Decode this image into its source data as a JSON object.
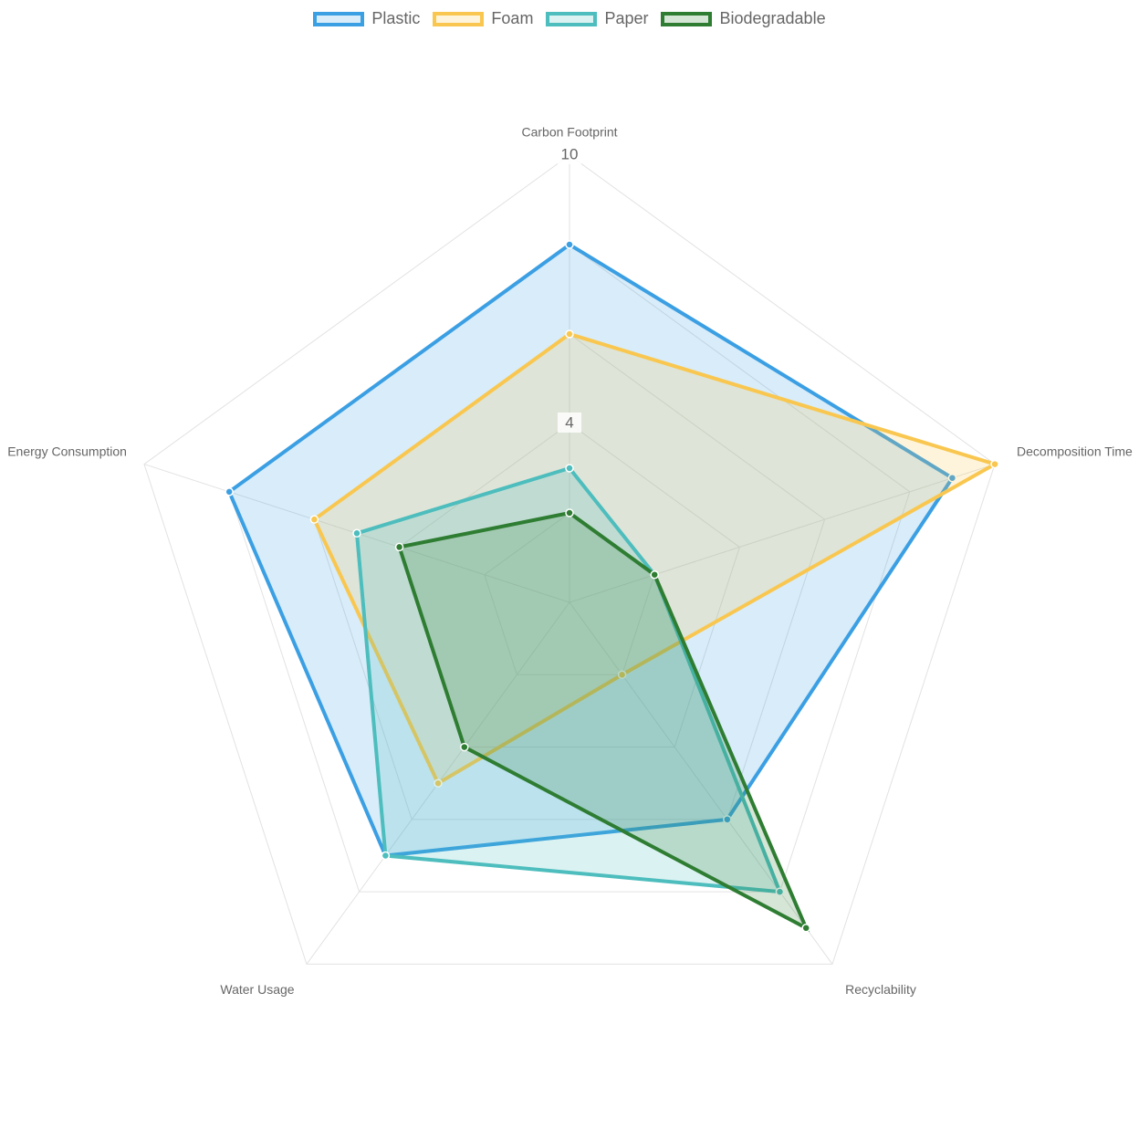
{
  "chart_data": {
    "type": "radar",
    "title": "",
    "axes": [
      "Carbon Footprint",
      "Decomposition Time",
      "Recyclability",
      "Water Usage",
      "Energy Consumption"
    ],
    "r_range": [
      0,
      10
    ],
    "ticks": [
      0,
      2,
      4,
      6,
      8,
      10
    ],
    "tick_labels_visible": [
      "4",
      "10"
    ],
    "grid": true,
    "legend_position": "top",
    "series": [
      {
        "name": "Plastic",
        "values": [
          8,
          9,
          6,
          7,
          8
        ],
        "color": "#3b9fe3",
        "fill": "rgba(59,159,227,0.2)"
      },
      {
        "name": "Foam",
        "values": [
          6,
          10,
          2,
          5,
          6
        ],
        "color": "#f9c74f",
        "fill": "rgba(249,199,79,0.2)"
      },
      {
        "name": "Paper",
        "values": [
          3,
          2,
          8,
          7,
          5
        ],
        "color": "#4dbdbd",
        "fill": "rgba(77,189,189,0.2)"
      },
      {
        "name": "Biodegradable",
        "values": [
          2,
          2,
          9,
          4,
          4
        ],
        "color": "#2e7d32",
        "fill": "rgba(46,125,50,0.2)"
      }
    ]
  }
}
